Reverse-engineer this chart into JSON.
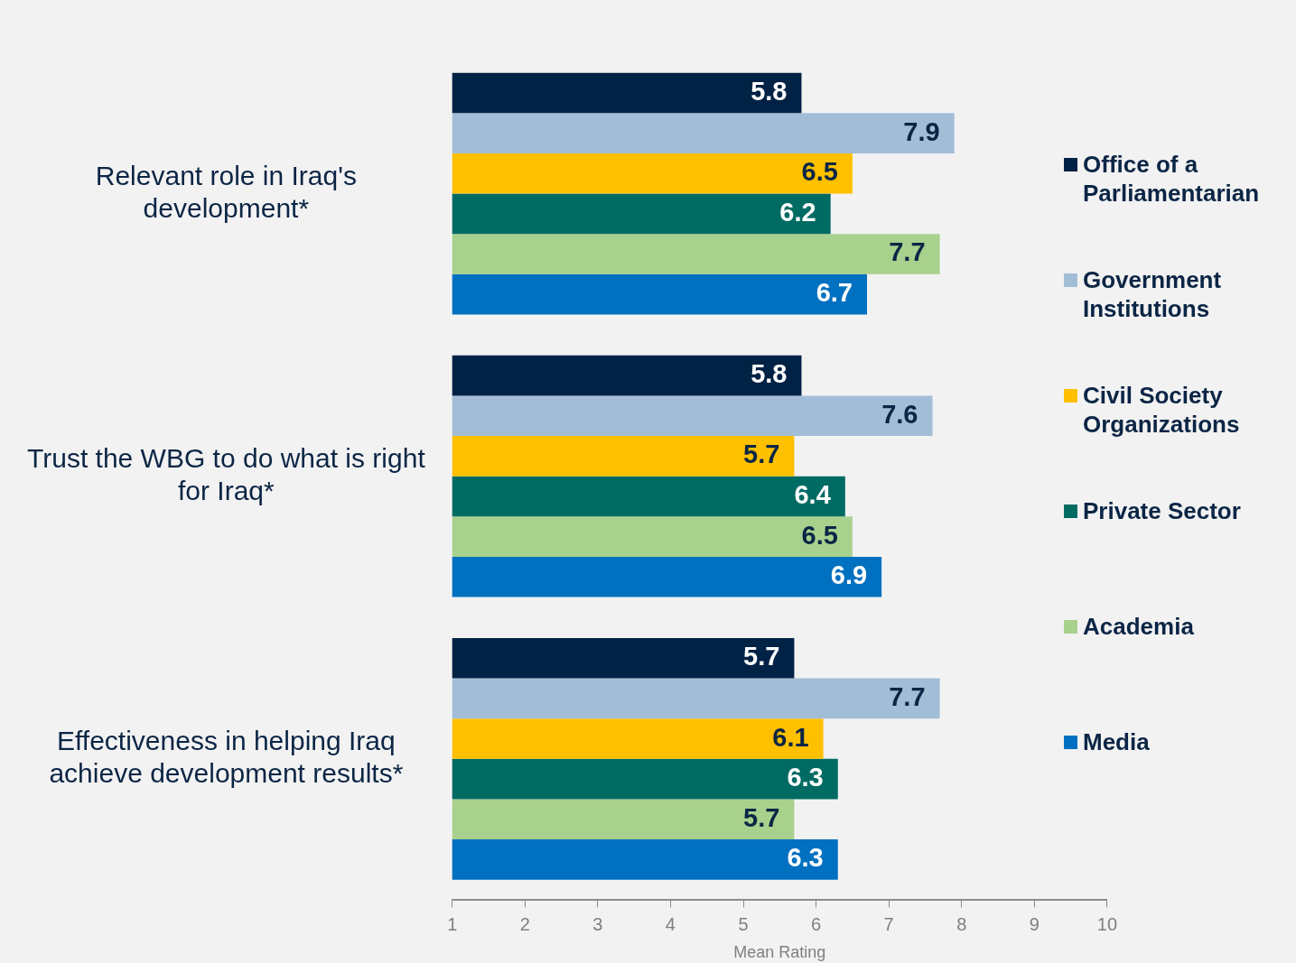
{
  "chart_data": {
    "type": "bar",
    "orientation": "horizontal",
    "xlabel": "Mean Rating",
    "categories": [
      "Relevant role in Iraq's development*",
      "Trust the WBG to do what is right for Iraq*",
      "Effectiveness in helping Iraq achieve development results*"
    ],
    "series": [
      {
        "name": "Office of a Parliamentarian",
        "color": "#002245",
        "values": [
          5.8,
          5.8,
          5.7
        ]
      },
      {
        "name": "Government Institutions",
        "color": "#a2bed7",
        "values": [
          7.9,
          7.6,
          7.7
        ]
      },
      {
        "name": "Civil Society Organizations",
        "color": "#ffc000",
        "values": [
          6.5,
          5.7,
          6.1
        ]
      },
      {
        "name": "Private Sector",
        "color": "#006b63",
        "values": [
          6.2,
          6.4,
          6.3
        ]
      },
      {
        "name": "Academia",
        "color": "#a9d18e",
        "values": [
          7.7,
          6.5,
          5.7
        ]
      },
      {
        "name": "Media",
        "color": "#0070c0",
        "values": [
          6.7,
          6.9,
          6.3
        ]
      }
    ],
    "xlim": [
      1,
      10
    ],
    "xticks": [
      1,
      2,
      3,
      4,
      5,
      6,
      7,
      8,
      9,
      10
    ],
    "data_labels": true,
    "grid": false,
    "legend": "right"
  }
}
